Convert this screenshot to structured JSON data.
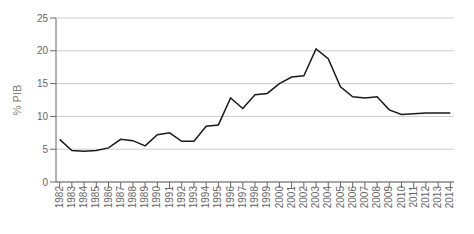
{
  "chart_data": {
    "type": "line",
    "x": [
      1982,
      1983,
      1984,
      1985,
      1986,
      1987,
      1988,
      1989,
      1990,
      1991,
      1992,
      1993,
      1994,
      1995,
      1996,
      1997,
      1998,
      1999,
      2000,
      2001,
      2002,
      2003,
      2004,
      2005,
      2006,
      2007,
      2008,
      2009,
      2010,
      2011,
      2012,
      2013,
      2014
    ],
    "values": [
      6.5,
      4.8,
      4.7,
      4.8,
      5.2,
      6.5,
      6.3,
      5.5,
      7.2,
      7.5,
      6.2,
      6.2,
      8.5,
      8.7,
      12.8,
      11.2,
      13.3,
      13.5,
      15.0,
      16.0,
      16.2,
      20.3,
      18.8,
      14.5,
      13.0,
      12.8,
      13.0,
      11.0,
      10.3,
      10.4,
      10.5,
      10.5,
      10.5
    ],
    "ylabel": "% PIB",
    "xlim": [
      1981.7,
      2014.3
    ],
    "xticks": [
      1982,
      1983,
      1984,
      1985,
      1986,
      1987,
      1988,
      1989,
      1990,
      1991,
      1992,
      1993,
      1994,
      1995,
      1996,
      1997,
      1998,
      1999,
      2000,
      2001,
      2002,
      2003,
      2004,
      2005,
      2006,
      2007,
      2008,
      2009,
      2010,
      2011,
      2012,
      2013,
      2014
    ],
    "ylim": [
      0,
      25
    ],
    "yticks": [
      0,
      5,
      10,
      15,
      20,
      25
    ],
    "color": "#1a1a1a",
    "grid": true
  }
}
